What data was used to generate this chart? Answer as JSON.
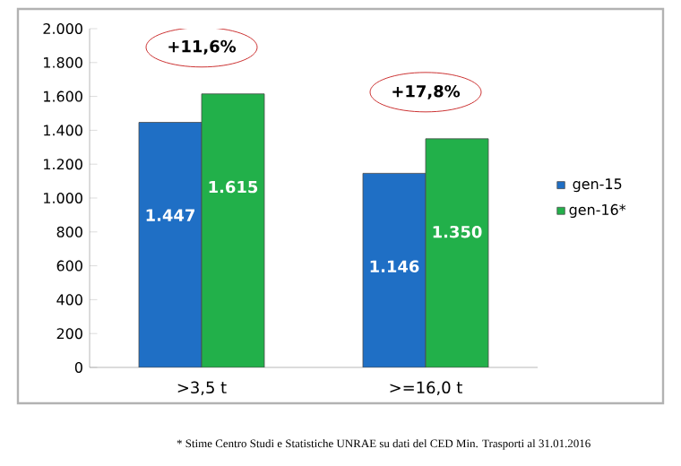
{
  "chart_data": {
    "type": "bar",
    "categories": [
      ">3,5 t",
      ">=16,0 t"
    ],
    "series": [
      {
        "name": "gen-15",
        "color": "#1f6fc5",
        "values": [
          1447,
          1146
        ],
        "value_labels": [
          "1.447",
          "1.146"
        ]
      },
      {
        "name": "gen-16*",
        "color": "#22b04a",
        "values": [
          1615,
          1350
        ],
        "value_labels": [
          "1.615",
          "1.350"
        ]
      }
    ],
    "ylim": [
      0,
      2000
    ],
    "yticks": [
      {
        "value": 0,
        "label": "0"
      },
      {
        "value": 200,
        "label": "200"
      },
      {
        "value": 400,
        "label": "400"
      },
      {
        "value": 600,
        "label": "600"
      },
      {
        "value": 800,
        "label": "800"
      },
      {
        "value": 1000,
        "label": "1.000"
      },
      {
        "value": 1200,
        "label": "1.200"
      },
      {
        "value": 1400,
        "label": "1.400"
      },
      {
        "value": 1600,
        "label": "1.600"
      },
      {
        "value": 1800,
        "label": "1.800"
      },
      {
        "value": 2000,
        "label": "2.000"
      }
    ],
    "grid": false,
    "legend": "right",
    "annotations": [
      "+11,6%",
      "+17,8%",
      "* Stime Centro Studi e Statistiche UNRAE su dati del CED Min. Trasporti al 31.01.2016"
    ]
  }
}
